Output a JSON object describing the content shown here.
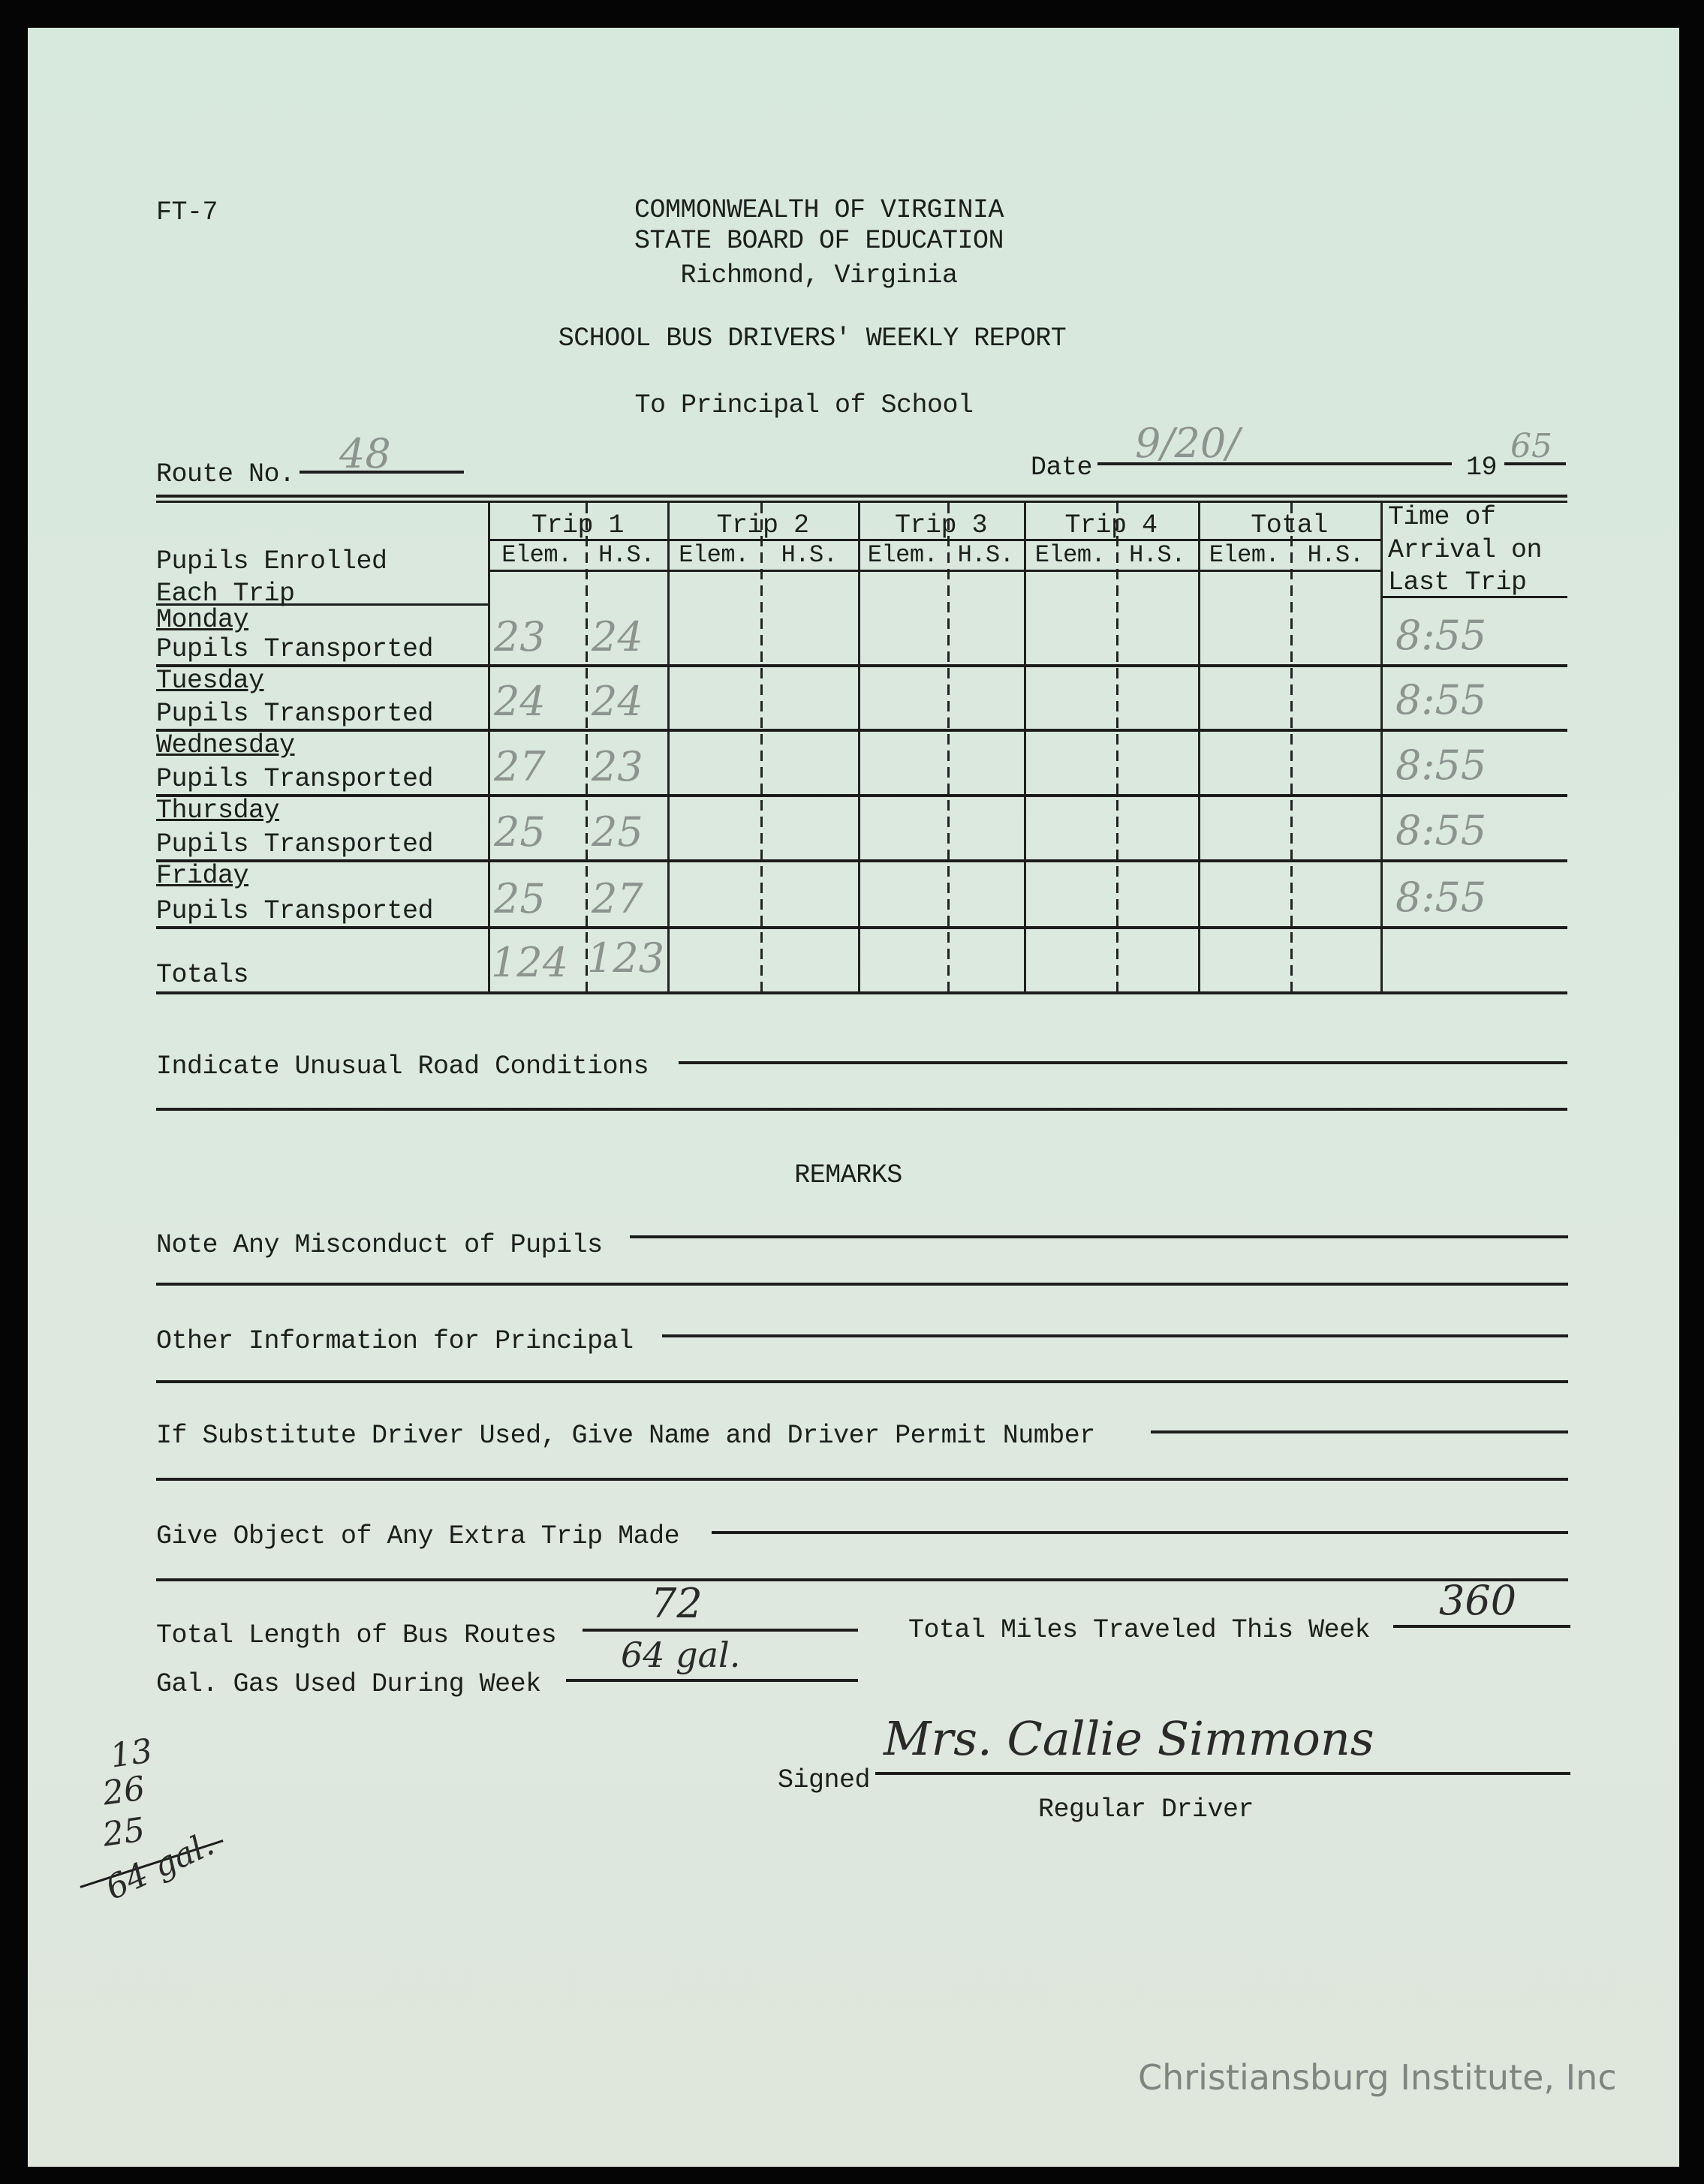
{
  "form_code": "FT-7",
  "header": {
    "line1": "COMMONWEALTH OF VIRGINIA",
    "line2": "STATE BOARD OF EDUCATION",
    "line3": "Richmond, Virginia",
    "title": "SCHOOL BUS DRIVERS' WEEKLY REPORT",
    "subtitle": "To Principal of School"
  },
  "route": {
    "label": "Route No.",
    "value": "48"
  },
  "date": {
    "label": "Date",
    "value": "9/20/",
    "year_prefix": "19",
    "year_value": "65"
  },
  "table": {
    "enrolled_label_1": "Pupils Enrolled",
    "enrolled_label_2": "Each Trip",
    "trips": [
      "Trip 1",
      "Trip 2",
      "Trip 3",
      "Trip 4",
      "Total"
    ],
    "sub_elem": "Elem.",
    "sub_hs": "H.S.",
    "arrival_1": "Time of",
    "arrival_2": "Arrival on",
    "arrival_3": "Last Trip",
    "rows": [
      {
        "day": "Monday",
        "label": "Pupils Transported",
        "elem": "23",
        "hs": "24",
        "time": "8:55"
      },
      {
        "day": "Tuesday",
        "label": "Pupils Transported",
        "elem": "24",
        "hs": "24",
        "time": "8:55"
      },
      {
        "day": "Wednesday",
        "label": "Pupils Transported",
        "elem": "27",
        "hs": "23",
        "time": "8:55"
      },
      {
        "day": "Thursday",
        "label": "Pupils Transported",
        "elem": "25",
        "hs": "25",
        "time": "8:55"
      },
      {
        "day": "Friday",
        "label": "Pupils Transported",
        "elem": "25",
        "hs": "27",
        "time": "8:55"
      }
    ],
    "totals_label": "Totals",
    "totals_elem": "124",
    "totals_hs": "123"
  },
  "road_conditions_label": "Indicate Unusual Road Conditions",
  "remarks_heading": "REMARKS",
  "misconduct_label": "Note Any Misconduct of Pupils",
  "other_info_label": "Other Information for Principal",
  "substitute_label": "If Substitute Driver Used, Give Name and Driver Permit Number",
  "extra_trip_label": "Give Object of Any Extra Trip Made",
  "route_length": {
    "label": "Total Length of Bus Routes",
    "value": "72"
  },
  "miles": {
    "label": "Total Miles Traveled This Week",
    "value": "360"
  },
  "gas": {
    "label": "Gal. Gas Used During Week",
    "value": "64 gal."
  },
  "signature": {
    "label": "Signed",
    "value": "Mrs. Callie Simmons",
    "role": "Regular Driver"
  },
  "margin_notes": [
    "13",
    "26",
    "25",
    "64 gal."
  ],
  "watermark": "Christiansburg Institute, Inc"
}
